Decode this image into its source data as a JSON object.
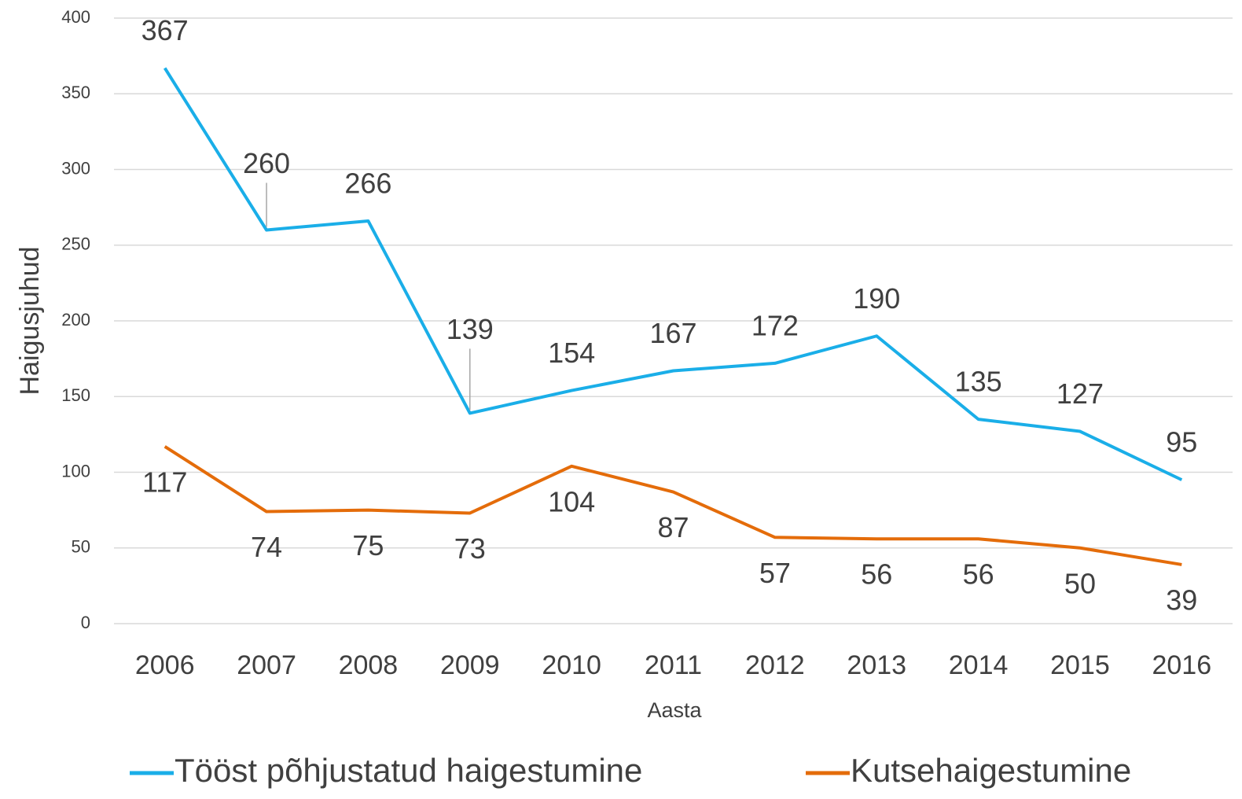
{
  "chart_data": {
    "type": "line",
    "xlabel": "Aasta",
    "ylabel": "Haigusjuhud",
    "categories": [
      "2006",
      "2007",
      "2008",
      "2009",
      "2010",
      "2011",
      "2012",
      "2013",
      "2014",
      "2015",
      "2016"
    ],
    "series": [
      {
        "name": "Tööst põhjustatud haigestumine",
        "color": "#1aaee8",
        "values": [
          367,
          260,
          266,
          139,
          154,
          167,
          172,
          190,
          135,
          127,
          95
        ]
      },
      {
        "name": "Kutsehaigestumine",
        "color": "#e46c0a",
        "values": [
          117,
          74,
          75,
          73,
          104,
          87,
          57,
          56,
          56,
          50,
          39
        ]
      }
    ],
    "ylim": [
      0,
      400
    ],
    "yticks": [
      0,
      50,
      100,
      150,
      200,
      250,
      300,
      350,
      400
    ],
    "grid": true,
    "legend": "bottom"
  }
}
